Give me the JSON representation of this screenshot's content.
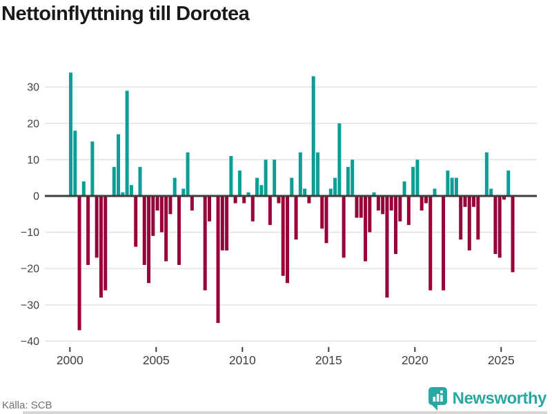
{
  "title": "Nettoinflyttning till Dorotea",
  "source": "Källa: SCB",
  "brand": {
    "name": "Newsworthy"
  },
  "chart_data": {
    "type": "bar",
    "title": "Nettoinflyttning till Dorotea",
    "xlabel": "",
    "ylabel": "",
    "frequency": "quarterly",
    "start_year": 2000,
    "start_quarter": 1,
    "end_year": 2025,
    "end_quarter": 3,
    "values": [
      34,
      18,
      -37,
      4,
      -19,
      15,
      -17,
      -28,
      -26,
      0,
      8,
      17,
      1,
      29,
      3,
      -14,
      8,
      -19,
      -24,
      -11,
      -4,
      -10,
      -18,
      -5,
      5,
      -19,
      2,
      12,
      -4,
      0,
      0,
      -26,
      -7,
      0,
      -35,
      -15,
      -15,
      11,
      -2,
      7,
      -2,
      1,
      -7,
      5,
      3,
      10,
      -8,
      10,
      -2,
      -22,
      -24,
      5,
      -12,
      12,
      2,
      -2,
      33,
      12,
      -9,
      -13,
      2,
      5,
      20,
      -17,
      8,
      10,
      -6,
      -6,
      -18,
      -10,
      1,
      -4,
      -5,
      -28,
      -4,
      -16,
      -7,
      4,
      -8,
      8,
      10,
      -4,
      -2,
      -26,
      2,
      0,
      -26,
      7,
      5,
      5,
      -12,
      -3,
      -15,
      -3,
      -12,
      0,
      12,
      2,
      -16,
      -17,
      -1,
      7,
      -21
    ],
    "yticks": [
      30,
      20,
      10,
      0,
      -10,
      -20,
      -30,
      -40
    ],
    "xticks": [
      2000,
      2005,
      2010,
      2015,
      2020,
      2025
    ],
    "ylim": [
      -40,
      35
    ],
    "grid": true,
    "legend": "none",
    "colors": {
      "positive": "#0a9e96",
      "negative": "#98003a",
      "axis": "#3d3d3d",
      "gridline": "#e4e4e4",
      "tick_label": "#3f3f3f",
      "brand_teal": "#2ba7a2"
    }
  }
}
